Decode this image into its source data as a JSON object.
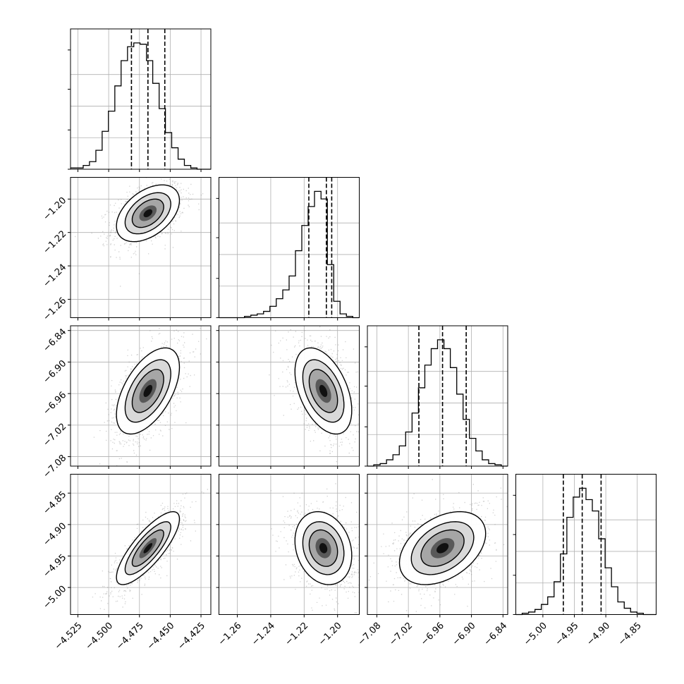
{
  "chart_data": {
    "type": "corner",
    "parameters": [
      {
        "ticks": [
          -4.525,
          -4.5,
          -4.475,
          -4.45,
          -4.425
        ],
        "tick_labels": [
          "−4.525",
          "−4.500",
          "−4.475",
          "−4.450",
          "−4.425"
        ],
        "range": [
          -4.531,
          -4.417
        ]
      },
      {
        "ticks": [
          -1.26,
          -1.24,
          -1.22,
          -1.2
        ],
        "tick_labels": [
          "−1.26",
          "−1.24",
          "−1.22",
          "−1.20"
        ],
        "range": [
          -1.271,
          -1.187
        ]
      },
      {
        "ticks": [
          -7.08,
          -7.02,
          -6.96,
          -6.9,
          -6.84
        ],
        "tick_labels": [
          "−7.08",
          "−7.02",
          "−6.96",
          "−6.90",
          "−6.84"
        ],
        "range": [
          -7.098,
          -6.831
        ]
      },
      {
        "ticks": [
          -5.0,
          -4.95,
          -4.9,
          -4.85
        ],
        "tick_labels": [
          "−5.00",
          "−4.95",
          "−4.90",
          "−4.85"
        ],
        "range": [
          -5.043,
          -4.82
        ]
      }
    ],
    "grid": true,
    "marginals": [
      {
        "quantiles": [
          -4.4815,
          -4.4681,
          -4.4544
        ],
        "bin_edges": [
          -4.531,
          -4.5259,
          -4.5207,
          -4.5156,
          -4.5104,
          -4.5053,
          -4.5002,
          -4.495,
          -4.4899,
          -4.4847,
          -4.4796,
          -4.4745,
          -4.4693,
          -4.4642,
          -4.459,
          -4.4539,
          -4.4488,
          -4.4436,
          -4.4385,
          -4.4333,
          -4.4282,
          -4.4231,
          -4.417
        ],
        "counts": [
          0.01,
          0.01,
          0.03,
          0.06,
          0.15,
          0.3,
          0.46,
          0.66,
          0.86,
          0.97,
          1.0,
          0.99,
          0.86,
          0.68,
          0.48,
          0.29,
          0.17,
          0.08,
          0.03,
          0.01,
          0.0,
          0.0
        ]
      },
      {
        "quantiles": [
          -1.2172,
          -1.2067,
          -1.2035
        ],
        "bin_edges": [
          -1.271,
          -1.2672,
          -1.2634,
          -1.2596,
          -1.2557,
          -1.2519,
          -1.2481,
          -1.2443,
          -1.2405,
          -1.2367,
          -1.2328,
          -1.229,
          -1.2252,
          -1.2214,
          -1.2176,
          -1.2138,
          -1.2099,
          -1.2061,
          -1.2023,
          -1.1985,
          -1.1947,
          -1.1909,
          -1.187
        ],
        "counts": [
          0.0,
          0.0,
          0.0,
          0.0,
          0.01,
          0.02,
          0.03,
          0.05,
          0.09,
          0.15,
          0.22,
          0.33,
          0.53,
          0.73,
          0.88,
          1.0,
          0.94,
          0.42,
          0.13,
          0.03,
          0.01,
          0.0
        ]
      },
      {
        "quantiles": [
          -7.0,
          -6.955,
          -6.91
        ],
        "bin_edges": [
          -7.098,
          -7.0859,
          -7.0737,
          -7.0616,
          -7.0494,
          -7.0373,
          -7.0252,
          -7.013,
          -7.0009,
          -6.9887,
          -6.9766,
          -6.9645,
          -6.9523,
          -6.9402,
          -6.928,
          -6.9159,
          -6.9038,
          -6.8916,
          -6.8795,
          -6.8673,
          -6.8552,
          -6.8431,
          -6.831
        ],
        "counts": [
          0.0,
          0.01,
          0.02,
          0.05,
          0.09,
          0.16,
          0.27,
          0.42,
          0.62,
          0.8,
          0.93,
          1.0,
          0.93,
          0.78,
          0.57,
          0.37,
          0.22,
          0.12,
          0.05,
          0.02,
          0.01,
          0.0
        ]
      },
      {
        "quantiles": [
          -4.9675,
          -4.9375,
          -4.9075
        ],
        "bin_edges": [
          -5.043,
          -5.0329,
          -5.0227,
          -5.0126,
          -5.0025,
          -4.9923,
          -4.9822,
          -4.9721,
          -4.9619,
          -4.9518,
          -4.9417,
          -4.9315,
          -4.9214,
          -4.9113,
          -4.9011,
          -4.891,
          -4.8809,
          -4.8707,
          -4.8606,
          -4.8505,
          -4.8403,
          -4.8302,
          -4.82
        ],
        "counts": [
          0.0,
          0.01,
          0.02,
          0.04,
          0.08,
          0.14,
          0.26,
          0.48,
          0.77,
          0.93,
          1.0,
          0.91,
          0.82,
          0.6,
          0.37,
          0.22,
          0.1,
          0.05,
          0.02,
          0.01,
          0.0,
          0.0
        ]
      }
    ],
    "joint": [
      {
        "x": 1,
        "y": 2,
        "mean": [
          -4.4681,
          -1.2085
        ],
        "sd": [
          0.0128,
          0.0085
        ],
        "rho": 0.45
      },
      {
        "x": 1,
        "y": 3,
        "mean": [
          -4.4681,
          -6.955
        ],
        "sd": [
          0.0128,
          0.041
        ],
        "rho": 0.55
      },
      {
        "x": 2,
        "y": 3,
        "mean": [
          -1.2085,
          -6.955
        ],
        "sd": [
          0.0085,
          0.041
        ],
        "rho": -0.45
      },
      {
        "x": 1,
        "y": 4,
        "mean": [
          -4.4681,
          -4.9375
        ],
        "sd": [
          0.0128,
          0.029
        ],
        "rho": 0.8
      },
      {
        "x": 2,
        "y": 4,
        "mean": [
          -1.2085,
          -4.9375
        ],
        "sd": [
          0.0085,
          0.029
        ],
        "rho": -0.2
      },
      {
        "x": 3,
        "y": 4,
        "mean": [
          -6.955,
          -4.9375
        ],
        "sd": [
          0.041,
          0.029
        ],
        "rho": 0.4
      }
    ]
  }
}
